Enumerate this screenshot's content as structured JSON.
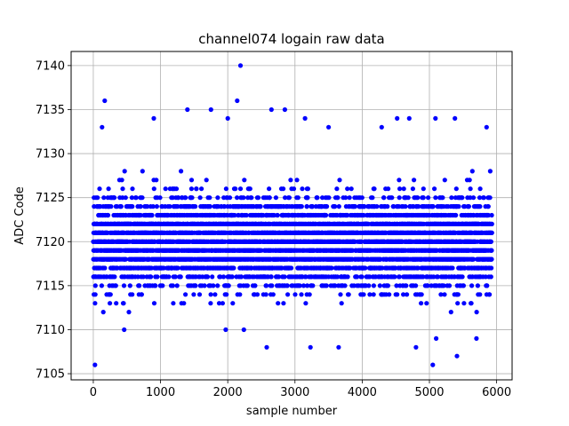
{
  "chart_data": {
    "type": "scatter",
    "title": "channel074 logain raw data",
    "xlabel": "sample number",
    "ylabel": "ADC Code",
    "xlim": [
      -330,
      6230
    ],
    "ylim": [
      7104.3,
      7141.6
    ],
    "x_ticks": [
      0,
      1000,
      2000,
      3000,
      4000,
      5000,
      6000
    ],
    "y_ticks": [
      7105,
      7110,
      7115,
      7120,
      7125,
      7130,
      7135,
      7140
    ],
    "grid": true,
    "marker_color": "#0000ff",
    "series": [
      {
        "sample_count": 6000,
        "x_start": 0,
        "x_end": 5930,
        "typical_min": 7111,
        "typical_max": 7130,
        "mode": 7120,
        "points": [
          {
            "x": 25,
            "y": 7106
          },
          {
            "x": 170,
            "y": 7136
          },
          {
            "x": 130,
            "y": 7133
          },
          {
            "x": 460,
            "y": 7110
          },
          {
            "x": 900,
            "y": 7134
          },
          {
            "x": 1400,
            "y": 7135
          },
          {
            "x": 1750,
            "y": 7135
          },
          {
            "x": 2000,
            "y": 7134
          },
          {
            "x": 2140,
            "y": 7136
          },
          {
            "x": 2190,
            "y": 7140
          },
          {
            "x": 1970,
            "y": 7110
          },
          {
            "x": 2240,
            "y": 7110
          },
          {
            "x": 2580,
            "y": 7108
          },
          {
            "x": 2650,
            "y": 7135
          },
          {
            "x": 2850,
            "y": 7135
          },
          {
            "x": 3150,
            "y": 7134
          },
          {
            "x": 3230,
            "y": 7108
          },
          {
            "x": 3500,
            "y": 7133
          },
          {
            "x": 3650,
            "y": 7108
          },
          {
            "x": 4290,
            "y": 7133
          },
          {
            "x": 4520,
            "y": 7134
          },
          {
            "x": 4700,
            "y": 7134
          },
          {
            "x": 4800,
            "y": 7108
          },
          {
            "x": 5050,
            "y": 7106
          },
          {
            "x": 5090,
            "y": 7134
          },
          {
            "x": 5100,
            "y": 7109
          },
          {
            "x": 5380,
            "y": 7134
          },
          {
            "x": 5410,
            "y": 7107
          },
          {
            "x": 5700,
            "y": 7109
          },
          {
            "x": 5850,
            "y": 7133
          }
        ]
      }
    ]
  }
}
